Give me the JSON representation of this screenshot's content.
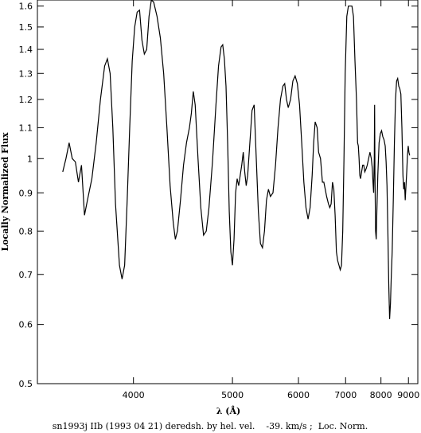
{
  "chart_data": {
    "type": "line",
    "title": "",
    "xlabel": "λ (Å)",
    "ylabel": "Locally Normalized Flux",
    "caption": "sn1993j IIb (1993 04 21) deredsh. by hel. vel.    -39. km/s ;  Loc. Norm.",
    "x_scale": "reciprocal",
    "y_scale": "log",
    "xlim": [
      3350,
      9400
    ],
    "ylim": [
      0.5,
      1.63
    ],
    "x_ticks": [
      4000,
      5000,
      6000,
      7000,
      8000,
      9000
    ],
    "x_tick_labels": [
      "4000",
      "5000",
      "6000",
      "7000",
      "8000",
      "9000"
    ],
    "y_ticks": [
      0.5,
      0.6,
      0.7,
      0.8,
      0.9,
      1,
      1.1,
      1.2,
      1.3,
      1.4,
      1.5,
      1.6
    ],
    "y_tick_labels": [
      "0.5",
      "0.6",
      "0.7",
      "0.8",
      "0.9",
      "1",
      "1.1",
      "1.2",
      "1.3",
      "1.4",
      "1.5",
      "1.6"
    ],
    "grid": false,
    "series": [
      {
        "color": "#000000",
        "points": [
          [
            3500,
            0.96
          ],
          [
            3520,
            1.0
          ],
          [
            3540,
            1.05
          ],
          [
            3560,
            1.0
          ],
          [
            3580,
            0.99
          ],
          [
            3600,
            0.93
          ],
          [
            3620,
            0.98
          ],
          [
            3640,
            0.84
          ],
          [
            3660,
            0.88
          ],
          [
            3690,
            0.94
          ],
          [
            3720,
            1.05
          ],
          [
            3750,
            1.2
          ],
          [
            3780,
            1.33
          ],
          [
            3800,
            1.36
          ],
          [
            3820,
            1.3
          ],
          [
            3840,
            1.1
          ],
          [
            3860,
            0.87
          ],
          [
            3890,
            0.72
          ],
          [
            3910,
            0.69
          ],
          [
            3930,
            0.72
          ],
          [
            3950,
            0.88
          ],
          [
            3970,
            1.1
          ],
          [
            3990,
            1.35
          ],
          [
            4010,
            1.5
          ],
          [
            4030,
            1.57
          ],
          [
            4050,
            1.58
          ],
          [
            4070,
            1.44
          ],
          [
            4090,
            1.38
          ],
          [
            4110,
            1.4
          ],
          [
            4130,
            1.55
          ],
          [
            4150,
            1.68
          ],
          [
            4170,
            1.62
          ],
          [
            4200,
            1.55
          ],
          [
            4230,
            1.45
          ],
          [
            4260,
            1.3
          ],
          [
            4290,
            1.1
          ],
          [
            4320,
            0.92
          ],
          [
            4350,
            0.82
          ],
          [
            4370,
            0.78
          ],
          [
            4390,
            0.8
          ],
          [
            4420,
            0.88
          ],
          [
            4450,
            0.98
          ],
          [
            4480,
            1.05
          ],
          [
            4510,
            1.1
          ],
          [
            4530,
            1.15
          ],
          [
            4550,
            1.23
          ],
          [
            4570,
            1.18
          ],
          [
            4600,
            1.0
          ],
          [
            4630,
            0.86
          ],
          [
            4660,
            0.79
          ],
          [
            4690,
            0.8
          ],
          [
            4720,
            0.86
          ],
          [
            4760,
            0.99
          ],
          [
            4800,
            1.18
          ],
          [
            4830,
            1.33
          ],
          [
            4860,
            1.41
          ],
          [
            4880,
            1.42
          ],
          [
            4900,
            1.36
          ],
          [
            4920,
            1.25
          ],
          [
            4940,
            1.05
          ],
          [
            4960,
            0.85
          ],
          [
            4980,
            0.75
          ],
          [
            5000,
            0.72
          ],
          [
            5020,
            0.78
          ],
          [
            5040,
            0.9
          ],
          [
            5060,
            0.94
          ],
          [
            5080,
            0.92
          ],
          [
            5100,
            0.95
          ],
          [
            5120,
            0.98
          ],
          [
            5140,
            1.02
          ],
          [
            5160,
            0.96
          ],
          [
            5180,
            0.92
          ],
          [
            5200,
            0.95
          ],
          [
            5230,
            1.05
          ],
          [
            5260,
            1.16
          ],
          [
            5290,
            1.18
          ],
          [
            5320,
            1.0
          ],
          [
            5350,
            0.85
          ],
          [
            5380,
            0.77
          ],
          [
            5410,
            0.76
          ],
          [
            5440,
            0.8
          ],
          [
            5470,
            0.88
          ],
          [
            5500,
            0.91
          ],
          [
            5530,
            0.89
          ],
          [
            5570,
            0.9
          ],
          [
            5610,
            0.98
          ],
          [
            5650,
            1.1
          ],
          [
            5690,
            1.2
          ],
          [
            5730,
            1.25
          ],
          [
            5760,
            1.26
          ],
          [
            5790,
            1.2
          ],
          [
            5820,
            1.17
          ],
          [
            5860,
            1.2
          ],
          [
            5900,
            1.27
          ],
          [
            5940,
            1.29
          ],
          [
            5980,
            1.26
          ],
          [
            6020,
            1.18
          ],
          [
            6060,
            1.05
          ],
          [
            6100,
            0.93
          ],
          [
            6140,
            0.86
          ],
          [
            6180,
            0.83
          ],
          [
            6220,
            0.86
          ],
          [
            6260,
            0.95
          ],
          [
            6290,
            1.05
          ],
          [
            6320,
            1.12
          ],
          [
            6360,
            1.1
          ],
          [
            6390,
            1.02
          ],
          [
            6430,
            1.0
          ],
          [
            6470,
            0.93
          ],
          [
            6500,
            0.93
          ],
          [
            6530,
            0.91
          ],
          [
            6560,
            0.89
          ],
          [
            6600,
            0.87
          ],
          [
            6630,
            0.86
          ],
          [
            6660,
            0.87
          ],
          [
            6690,
            0.93
          ],
          [
            6720,
            0.91
          ],
          [
            6750,
            0.84
          ],
          [
            6780,
            0.75
          ],
          [
            6810,
            0.73
          ],
          [
            6840,
            0.72
          ],
          [
            6870,
            0.71
          ],
          [
            6900,
            0.72
          ],
          [
            6930,
            0.8
          ],
          [
            6960,
            1.0
          ],
          [
            6990,
            1.3
          ],
          [
            7030,
            1.55
          ],
          [
            7070,
            1.6
          ],
          [
            7120,
            1.6
          ],
          [
            7160,
            1.6
          ],
          [
            7200,
            1.55
          ],
          [
            7240,
            1.35
          ],
          [
            7280,
            1.2
          ],
          [
            7310,
            1.05
          ],
          [
            7330,
            1.04
          ],
          [
            7350,
            1.0
          ],
          [
            7370,
            0.95
          ],
          [
            7390,
            0.94
          ],
          [
            7420,
            0.96
          ],
          [
            7450,
            0.98
          ],
          [
            7480,
            0.98
          ],
          [
            7510,
            0.96
          ],
          [
            7550,
            0.97
          ],
          [
            7580,
            0.98
          ],
          [
            7620,
            1.0
          ],
          [
            7660,
            1.02
          ],
          [
            7700,
            1.0
          ],
          [
            7730,
            0.97
          ],
          [
            7750,
            0.93
          ],
          [
            7770,
            0.9
          ],
          [
            7790,
            1.0
          ],
          [
            7800,
            1.18
          ],
          [
            7810,
            0.96
          ],
          [
            7830,
            0.8
          ],
          [
            7850,
            0.78
          ],
          [
            7870,
            0.85
          ],
          [
            7900,
            0.95
          ],
          [
            7940,
            1.05
          ],
          [
            7980,
            1.08
          ],
          [
            8020,
            1.09
          ],
          [
            8060,
            1.07
          ],
          [
            8100,
            1.06
          ],
          [
            8140,
            1.04
          ],
          [
            8170,
            0.99
          ],
          [
            8200,
            0.92
          ],
          [
            8230,
            0.8
          ],
          [
            8260,
            0.68
          ],
          [
            8290,
            0.61
          ],
          [
            8320,
            0.64
          ],
          [
            8350,
            0.7
          ],
          [
            8380,
            0.75
          ],
          [
            8420,
            0.88
          ],
          [
            8460,
            1.05
          ],
          [
            8500,
            1.2
          ],
          [
            8540,
            1.27
          ],
          [
            8580,
            1.28
          ],
          [
            8620,
            1.25
          ],
          [
            8660,
            1.24
          ],
          [
            8700,
            1.22
          ],
          [
            8740,
            1.1
          ],
          [
            8780,
            0.95
          ],
          [
            8810,
            0.91
          ],
          [
            8840,
            0.93
          ],
          [
            8870,
            0.88
          ],
          [
            8900,
            0.92
          ],
          [
            8930,
            0.96
          ],
          [
            8960,
            1.01
          ],
          [
            8990,
            1.04
          ],
          [
            9020,
            1.02
          ],
          [
            9050,
            1.01
          ]
        ]
      }
    ]
  }
}
